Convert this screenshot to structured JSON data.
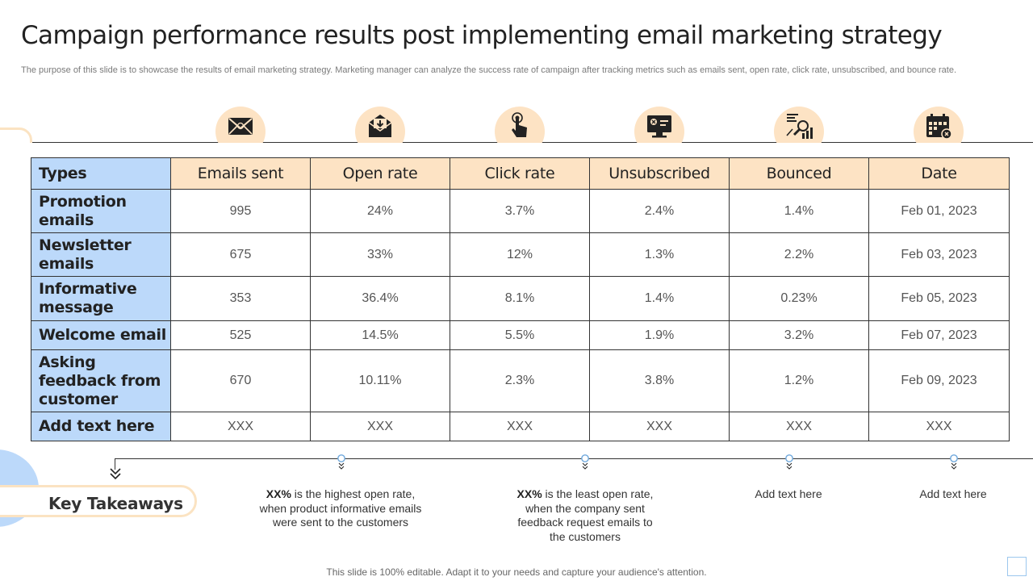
{
  "title": "Campaign performance results post implementing email marketing strategy",
  "subtitle": "The purpose of this slide is to showcase the results of email marketing strategy. Marketing manager can analyze the success rate of campaign after tracking metrics such as emails sent, open rate, click rate, unsubscribed, and bounce rate.",
  "icons": [
    "envelope-icon",
    "open-envelope-icon",
    "click-pointer-icon",
    "unsubscribe-monitor-icon",
    "analytics-icon",
    "calendar-icon"
  ],
  "table": {
    "headers": [
      "Types",
      "Emails sent",
      "Open rate",
      "Click rate",
      "Unsubscribed",
      "Bounced",
      "Date"
    ],
    "rows": [
      [
        "Promotion emails",
        "995",
        "24%",
        "3.7%",
        "2.4%",
        "1.4%",
        "Feb 01, 2023"
      ],
      [
        "Newsletter emails",
        "675",
        "33%",
        "12%",
        "1.3%",
        "2.2%",
        "Feb 03, 2023"
      ],
      [
        "Informative message",
        "353",
        "36.4%",
        "8.1%",
        "1.4%",
        "0.23%",
        "Feb 05, 2023"
      ],
      [
        "Welcome email",
        "525",
        "14.5%",
        "5.5%",
        "1.9%",
        "3.2%",
        "Feb 07, 2023"
      ],
      [
        "Asking feedback from customer",
        "670",
        "10.11%",
        "2.3%",
        "3.8%",
        "1.2%",
        "Feb 09, 2023"
      ],
      [
        "Add text here",
        "XXX",
        "XXX",
        "XXX",
        "XXX",
        "XXX",
        "XXX"
      ]
    ]
  },
  "key_takeaways": {
    "label": "Key Takeaways",
    "items": [
      {
        "bold": "XX%",
        "text": " is the highest open rate, when product informative emails were sent to the customers"
      },
      {
        "bold": "XX%",
        "text": " is the least open rate, when the company sent feedback request emails to the customers"
      },
      {
        "bold": "",
        "text": "Add text here"
      },
      {
        "bold": "",
        "text": "Add text here"
      }
    ]
  },
  "footer": "This slide is 100% editable. Adapt it to your needs and capture your audience's attention.",
  "colors": {
    "accent_orange": "#fde3c4",
    "accent_blue": "#bcd9fa",
    "line": "#333333",
    "marker_blue": "#9cc7ee"
  }
}
